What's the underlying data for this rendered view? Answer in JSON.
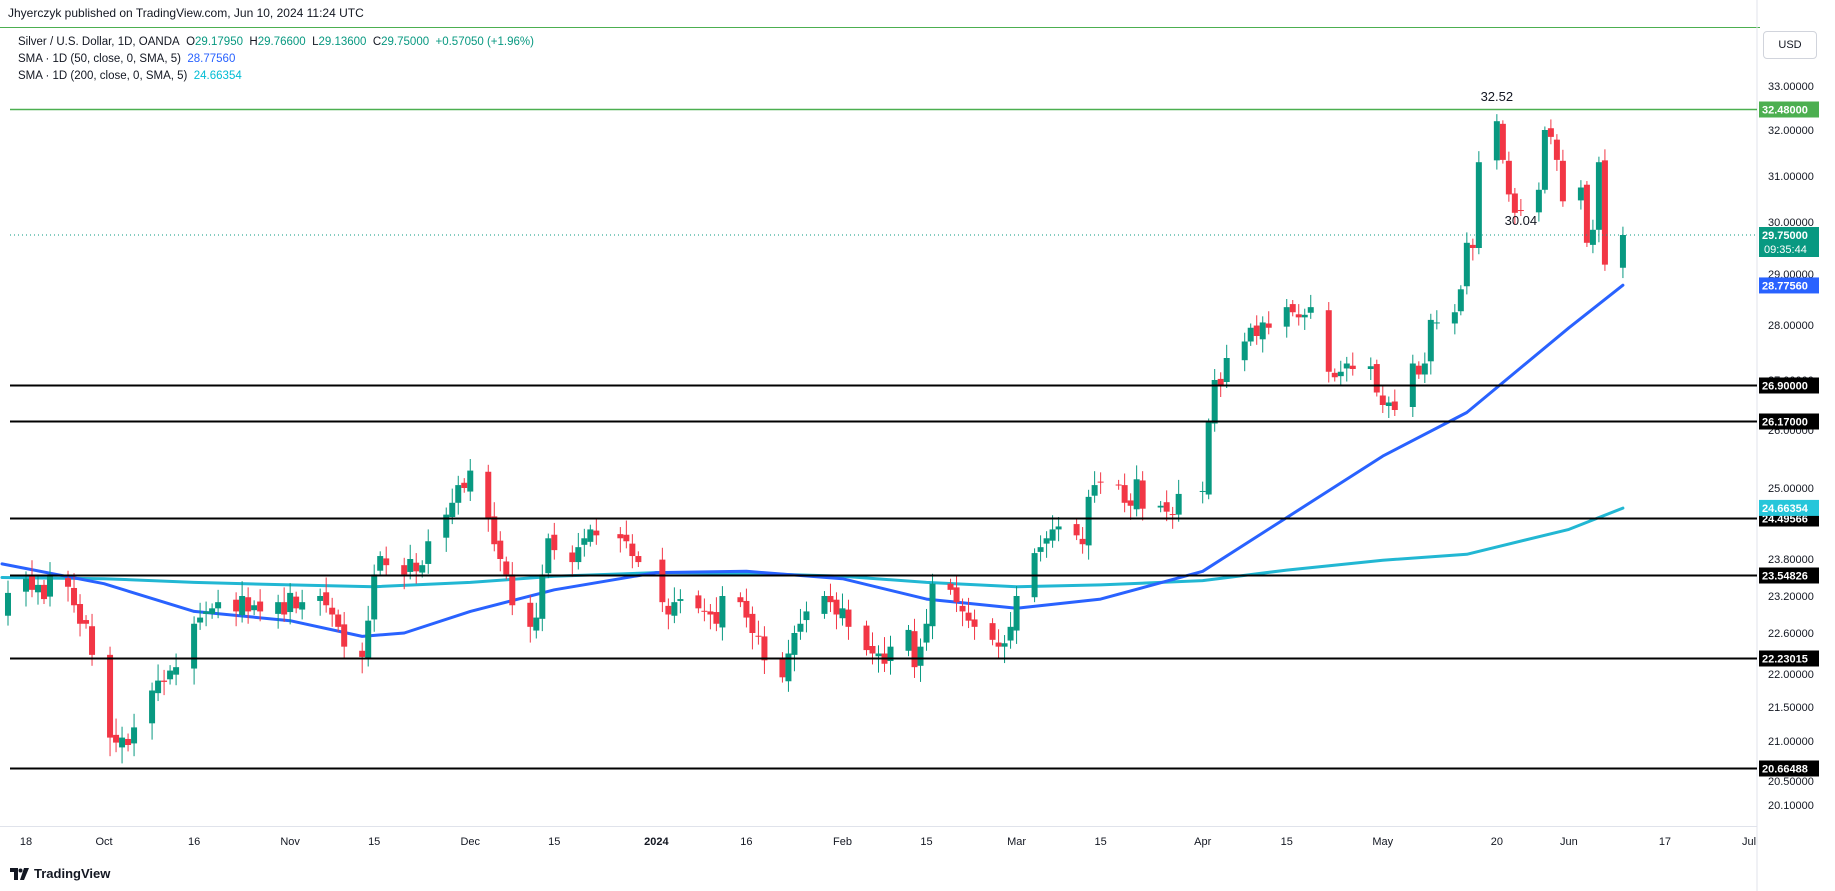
{
  "header": {
    "published": "Jhyerczyk published on TradingView.com, Jun 10, 2024 11:24 UTC"
  },
  "legend": {
    "symbol": "Silver / U.S. Dollar, 1D, OANDA",
    "o_label": "O",
    "o_value": "29.17950",
    "h_label": "H",
    "h_value": "29.76600",
    "l_label": "L",
    "l_value": "29.13600",
    "c_label": "C",
    "c_value": "29.75000",
    "change": "+0.57050 (+1.96%)",
    "sma50_label": "SMA · 1D (50, close, 0, SMA, 5)",
    "sma50_value": "28.77560",
    "sma200_label": "SMA · 1D (200, close, 0, SMA, 5)",
    "sma200_value": "24.66354"
  },
  "currency": "USD",
  "footer": {
    "brand": "TradingView"
  },
  "colors": {
    "up": "#089981",
    "down": "#f23645",
    "sma50": "#2962ff",
    "sma200": "#22b7d3",
    "resistance": "#4caf50",
    "support": "#000000"
  },
  "chart_data": {
    "type": "candlestick",
    "ylim": [
      19.7,
      33.5
    ],
    "y_ticks": [
      "33.00000",
      "32.00000",
      "31.00000",
      "30.00000",
      "29.00000",
      "28.00000",
      "27.00000",
      "26.00000",
      "25.00000",
      "23.80000",
      "23.20000",
      "22.60000",
      "22.00000",
      "21.50000",
      "21.00000",
      "20.50000",
      "20.10000"
    ],
    "x_labels": [
      {
        "label": "18",
        "date": "2023-09-18"
      },
      {
        "label": "Oct",
        "date": "2023-10-01"
      },
      {
        "label": "16",
        "date": "2023-10-16"
      },
      {
        "label": "Nov",
        "date": "2023-11-01"
      },
      {
        "label": "15",
        "date": "2023-11-15"
      },
      {
        "label": "Dec",
        "date": "2023-12-01"
      },
      {
        "label": "15",
        "date": "2023-12-15"
      },
      {
        "label": "2024",
        "date": "2024-01-01",
        "bold": true
      },
      {
        "label": "16",
        "date": "2024-01-16"
      },
      {
        "label": "Feb",
        "date": "2024-02-01"
      },
      {
        "label": "15",
        "date": "2024-02-15"
      },
      {
        "label": "Mar",
        "date": "2024-03-01"
      },
      {
        "label": "15",
        "date": "2024-03-15"
      },
      {
        "label": "Apr",
        "date": "2024-04-01"
      },
      {
        "label": "15",
        "date": "2024-04-15"
      },
      {
        "label": "May",
        "date": "2024-05-01"
      },
      {
        "label": "20",
        "date": "2024-05-20"
      },
      {
        "label": "Jun",
        "date": "2024-06-01"
      },
      {
        "label": "17",
        "date": "2024-06-17"
      },
      {
        "label": "Jul",
        "date": "2024-07-01"
      }
    ],
    "horizontal_levels": [
      {
        "value": 32.48,
        "label": "32.48000",
        "style": "resistance"
      },
      {
        "value": 26.9,
        "label": "26.90000",
        "style": "support"
      },
      {
        "value": 26.17,
        "label": "26.17000",
        "style": "support"
      },
      {
        "value": 24.49566,
        "label": "24.49566",
        "style": "support"
      },
      {
        "value": 23.54826,
        "label": "23.54826",
        "style": "support"
      },
      {
        "value": 22.23015,
        "label": "22.23015",
        "style": "support"
      },
      {
        "value": 20.66488,
        "label": "20.66488",
        "style": "support"
      }
    ],
    "price_tags": [
      {
        "value": 29.75,
        "label": "29.75000",
        "sub": "09:35:44",
        "kind": "last"
      },
      {
        "value": 28.7756,
        "label": "28.77560",
        "kind": "sma50"
      },
      {
        "value": 24.66354,
        "label": "24.66354",
        "kind": "sma200"
      }
    ],
    "annotations": [
      {
        "text": "32.52",
        "date": "2024-05-20",
        "value": 32.52
      },
      {
        "text": "30.04",
        "date": "2024-05-24",
        "value": 30.04
      }
    ],
    "closes": [
      [
        "2023-09-14",
        22.9
      ],
      [
        "2023-09-15",
        23.25
      ],
      [
        "2023-09-18",
        23.48
      ],
      [
        "2023-09-19",
        23.3
      ],
      [
        "2023-09-20",
        23.38
      ],
      [
        "2023-09-21",
        23.15
      ],
      [
        "2023-09-22",
        23.55
      ],
      [
        "2023-09-25",
        23.35
      ],
      [
        "2023-09-26",
        23.05
      ],
      [
        "2023-09-27",
        22.75
      ],
      [
        "2023-09-28",
        22.75
      ],
      [
        "2023-09-29",
        22.28
      ],
      [
        "2023-10-02",
        21.05
      ],
      [
        "2023-10-03",
        20.98
      ],
      [
        "2023-10-04",
        21.05
      ],
      [
        "2023-10-05",
        20.95
      ],
      [
        "2023-10-06",
        21.2
      ],
      [
        "2023-10-09",
        21.75
      ],
      [
        "2023-10-10",
        21.9
      ],
      [
        "2023-10-11",
        21.88
      ],
      [
        "2023-10-12",
        22.05
      ],
      [
        "2023-10-13",
        22.1
      ],
      [
        "2023-10-16",
        22.75
      ],
      [
        "2023-10-17",
        22.85
      ],
      [
        "2023-10-18",
        22.95
      ],
      [
        "2023-10-19",
        23.0
      ],
      [
        "2023-10-20",
        23.1
      ],
      [
        "2023-10-23",
        22.95
      ],
      [
        "2023-10-24",
        23.2
      ],
      [
        "2023-10-25",
        22.95
      ],
      [
        "2023-10-26",
        23.05
      ],
      [
        "2023-10-27",
        22.95
      ],
      [
        "2023-10-30",
        23.1
      ],
      [
        "2023-10-31",
        22.9
      ],
      [
        "2023-11-01",
        23.25
      ],
      [
        "2023-11-02",
        23.0
      ],
      [
        "2023-11-03",
        23.1
      ],
      [
        "2023-11-06",
        23.2
      ],
      [
        "2023-11-07",
        23.05
      ],
      [
        "2023-11-08",
        22.9
      ],
      [
        "2023-11-09",
        22.7
      ],
      [
        "2023-11-10",
        22.4
      ],
      [
        "2023-11-13",
        22.25
      ],
      [
        "2023-11-14",
        22.8
      ],
      [
        "2023-11-15",
        23.55
      ],
      [
        "2023-11-16",
        23.85
      ],
      [
        "2023-11-17",
        23.7
      ],
      [
        "2023-11-20",
        23.55
      ],
      [
        "2023-11-21",
        23.8
      ],
      [
        "2023-11-22",
        23.6
      ],
      [
        "2023-11-23",
        23.7
      ],
      [
        "2023-11-24",
        24.1
      ],
      [
        "2023-11-27",
        24.55
      ],
      [
        "2023-11-28",
        24.75
      ],
      [
        "2023-11-29",
        25.05
      ],
      [
        "2023-11-30",
        25.0
      ],
      [
        "2023-12-01",
        25.3
      ],
      [
        "2023-12-04",
        24.5
      ],
      [
        "2023-12-05",
        24.05
      ],
      [
        "2023-12-06",
        23.8
      ],
      [
        "2023-12-07",
        23.55
      ],
      [
        "2023-12-08",
        23.05
      ],
      [
        "2023-12-11",
        22.7
      ],
      [
        "2023-12-12",
        22.85
      ],
      [
        "2023-12-13",
        23.55
      ],
      [
        "2023-12-14",
        24.15
      ],
      [
        "2023-12-15",
        23.95
      ],
      [
        "2023-12-18",
        23.75
      ],
      [
        "2023-12-19",
        24.0
      ],
      [
        "2023-12-20",
        24.15
      ],
      [
        "2023-12-21",
        24.3
      ],
      [
        "2023-12-22",
        24.2
      ],
      [
        "2023-12-26",
        24.15
      ],
      [
        "2023-12-27",
        24.1
      ],
      [
        "2023-12-28",
        23.85
      ],
      [
        "2023-12-29",
        23.75
      ],
      [
        "2024-01-02",
        23.1
      ],
      [
        "2024-01-03",
        22.9
      ],
      [
        "2024-01-04",
        23.1
      ],
      [
        "2024-01-05",
        23.15
      ],
      [
        "2024-01-08",
        23.0
      ],
      [
        "2024-01-09",
        22.95
      ],
      [
        "2024-01-10",
        22.9
      ],
      [
        "2024-01-11",
        22.75
      ],
      [
        "2024-01-12",
        23.2
      ],
      [
        "2024-01-15",
        23.1
      ],
      [
        "2024-01-16",
        22.85
      ],
      [
        "2024-01-17",
        22.6
      ],
      [
        "2024-01-18",
        22.55
      ],
      [
        "2024-01-19",
        22.2
      ],
      [
        "2024-01-22",
        21.95
      ],
      [
        "2024-01-23",
        22.3
      ],
      [
        "2024-01-24",
        22.6
      ],
      [
        "2024-01-25",
        22.75
      ],
      [
        "2024-01-26",
        22.95
      ],
      [
        "2024-01-29",
        23.2
      ],
      [
        "2024-01-30",
        23.1
      ],
      [
        "2024-01-31",
        22.9
      ],
      [
        "2024-02-01",
        23.0
      ],
      [
        "2024-02-02",
        22.7
      ],
      [
        "2024-02-05",
        22.35
      ],
      [
        "2024-02-06",
        22.3
      ],
      [
        "2024-02-07",
        22.3
      ],
      [
        "2024-02-08",
        22.15
      ],
      [
        "2024-02-09",
        22.4
      ],
      [
        "2024-02-12",
        22.65
      ],
      [
        "2024-02-13",
        22.1
      ],
      [
        "2024-02-14",
        22.4
      ],
      [
        "2024-02-15",
        22.75
      ],
      [
        "2024-02-16",
        23.4
      ],
      [
        "2024-02-19",
        23.3
      ],
      [
        "2024-02-20",
        23.1
      ],
      [
        "2024-02-21",
        22.95
      ],
      [
        "2024-02-22",
        22.8
      ],
      [
        "2024-02-23",
        22.7
      ],
      [
        "2024-02-26",
        22.5
      ],
      [
        "2024-02-27",
        22.4
      ],
      [
        "2024-02-28",
        22.45
      ],
      [
        "2024-02-29",
        22.7
      ],
      [
        "2024-03-01",
        23.2
      ],
      [
        "2024-03-04",
        23.9
      ],
      [
        "2024-03-05",
        24.0
      ],
      [
        "2024-03-06",
        24.15
      ],
      [
        "2024-03-07",
        24.3
      ],
      [
        "2024-03-08",
        24.35
      ],
      [
        "2024-03-11",
        24.2
      ],
      [
        "2024-03-12",
        24.05
      ],
      [
        "2024-03-13",
        24.85
      ],
      [
        "2024-03-14",
        25.05
      ],
      [
        "2024-03-15",
        25.1
      ],
      [
        "2024-03-18",
        25.05
      ],
      [
        "2024-03-19",
        24.75
      ],
      [
        "2024-03-20",
        24.7
      ],
      [
        "2024-03-21",
        25.15
      ],
      [
        "2024-03-22",
        24.65
      ],
      [
        "2024-03-25",
        24.7
      ],
      [
        "2024-03-26",
        24.6
      ],
      [
        "2024-03-27",
        24.55
      ],
      [
        "2024-03-28",
        24.9
      ],
      [
        "2024-04-01",
        24.95
      ],
      [
        "2024-04-02",
        26.15
      ],
      [
        "2024-04-03",
        27.0
      ],
      [
        "2024-04-04",
        26.9
      ],
      [
        "2024-04-05",
        27.4
      ],
      [
        "2024-04-08",
        27.7
      ],
      [
        "2024-04-09",
        27.95
      ],
      [
        "2024-04-10",
        27.8
      ],
      [
        "2024-04-11",
        28.05
      ],
      [
        "2024-04-12",
        27.95
      ],
      [
        "2024-04-15",
        28.35
      ],
      [
        "2024-04-16",
        28.25
      ],
      [
        "2024-04-17",
        28.15
      ],
      [
        "2024-04-18",
        28.2
      ],
      [
        "2024-04-19",
        28.35
      ],
      [
        "2024-04-22",
        27.15
      ],
      [
        "2024-04-23",
        27.05
      ],
      [
        "2024-04-24",
        27.15
      ],
      [
        "2024-04-25",
        27.3
      ],
      [
        "2024-04-26",
        27.2
      ],
      [
        "2024-04-29",
        27.25
      ],
      [
        "2024-04-30",
        26.75
      ],
      [
        "2024-05-01",
        26.5
      ],
      [
        "2024-05-02",
        26.55
      ],
      [
        "2024-05-03",
        26.4
      ],
      [
        "2024-05-06",
        27.3
      ],
      [
        "2024-05-07",
        27.1
      ],
      [
        "2024-05-08",
        27.3
      ],
      [
        "2024-05-09",
        28.1
      ],
      [
        "2024-05-10",
        28.05
      ],
      [
        "2024-05-13",
        28.25
      ],
      [
        "2024-05-14",
        28.7
      ],
      [
        "2024-05-15",
        29.6
      ],
      [
        "2024-05-16",
        29.5
      ],
      [
        "2024-05-17",
        31.3
      ],
      [
        "2024-05-20",
        32.2
      ],
      [
        "2024-05-21",
        31.35
      ],
      [
        "2024-05-22",
        30.6
      ],
      [
        "2024-05-23",
        30.2
      ],
      [
        "2024-05-24",
        30.25
      ],
      [
        "2024-05-27",
        30.7
      ],
      [
        "2024-05-28",
        32.0
      ],
      [
        "2024-05-29",
        31.85
      ],
      [
        "2024-05-30",
        31.35
      ],
      [
        "2024-05-31",
        30.45
      ],
      [
        "2024-06-03",
        30.75
      ],
      [
        "2024-06-04",
        29.6
      ],
      [
        "2024-06-05",
        29.85
      ],
      [
        "2024-06-06",
        31.3
      ],
      [
        "2024-06-07",
        29.18
      ],
      [
        "2024-06-10",
        29.75
      ]
    ],
    "sma50_points": [
      [
        "2023-09-14",
        23.72
      ],
      [
        "2023-10-01",
        23.4
      ],
      [
        "2023-10-16",
        22.95
      ],
      [
        "2023-11-01",
        22.8
      ],
      [
        "2023-11-13",
        22.55
      ],
      [
        "2023-11-20",
        22.6
      ],
      [
        "2023-12-01",
        22.95
      ],
      [
        "2023-12-15",
        23.3
      ],
      [
        "2024-01-01",
        23.58
      ],
      [
        "2024-01-16",
        23.6
      ],
      [
        "2024-02-01",
        23.48
      ],
      [
        "2024-02-15",
        23.15
      ],
      [
        "2024-03-01",
        23.0
      ],
      [
        "2024-03-15",
        23.15
      ],
      [
        "2024-04-01",
        23.6
      ],
      [
        "2024-04-15",
        24.5
      ],
      [
        "2024-05-01",
        25.55
      ],
      [
        "2024-05-15",
        26.35
      ],
      [
        "2024-06-01",
        27.95
      ],
      [
        "2024-06-10",
        28.78
      ]
    ],
    "sma200_points": [
      [
        "2023-09-14",
        23.5
      ],
      [
        "2023-10-01",
        23.48
      ],
      [
        "2023-10-16",
        23.42
      ],
      [
        "2023-11-01",
        23.38
      ],
      [
        "2023-11-15",
        23.35
      ],
      [
        "2023-12-01",
        23.42
      ],
      [
        "2023-12-15",
        23.52
      ],
      [
        "2024-01-01",
        23.58
      ],
      [
        "2024-01-16",
        23.57
      ],
      [
        "2024-02-01",
        23.52
      ],
      [
        "2024-02-15",
        23.42
      ],
      [
        "2024-03-01",
        23.35
      ],
      [
        "2024-03-15",
        23.38
      ],
      [
        "2024-04-01",
        23.45
      ],
      [
        "2024-04-15",
        23.62
      ],
      [
        "2024-05-01",
        23.78
      ],
      [
        "2024-05-15",
        23.88
      ],
      [
        "2024-06-01",
        24.3
      ],
      [
        "2024-06-10",
        24.66
      ]
    ]
  }
}
